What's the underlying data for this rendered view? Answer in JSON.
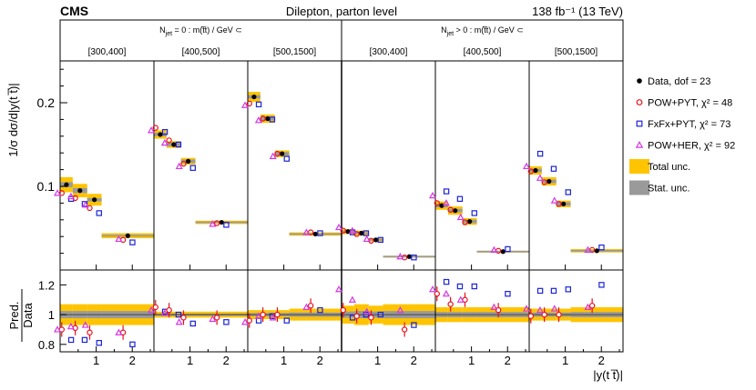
{
  "chart_data": {
    "type": "scatter",
    "experiment": "CMS",
    "title": "Dilepton, parton level",
    "lumi": "138 fb⁻¹ (13 TeV)",
    "ylabel": "1/σ dσ/d|y(t t̅)|",
    "ratio_ylabel_top": "Pred.",
    "ratio_ylabel_bottom": "Data",
    "xlabel": "|y(t t̅)|",
    "ylim": [
      0.0,
      0.25
    ],
    "ratio_ylim": [
      0.75,
      1.3
    ],
    "y_ticks": [
      {
        "v": 0.1,
        "label": "0.1"
      },
      {
        "v": 0.2,
        "label": "0.2"
      }
    ],
    "ratio_ticks": [
      {
        "v": 0.8,
        "label": "0.8"
      },
      {
        "v": 1.0,
        "label": "1"
      },
      {
        "v": 1.2,
        "label": "1.2"
      }
    ],
    "x_ticks": [
      {
        "v": 1,
        "label": "1"
      },
      {
        "v": 2,
        "label": "2"
      }
    ],
    "xlim": [
      0,
      2.6
    ],
    "bin_edges": [
      0,
      0.35,
      0.75,
      1.15,
      2.6
    ],
    "groups": [
      {
        "label": "Nⱼₑₜ = 0 : m(t t̅) / GeV ⊂",
        "label_main": "N",
        "label_sub": "jet",
        "label_rest": " = 0 : m(t̅t) / GeV ⊂"
      },
      {
        "label": "Nⱼₑₜ > 0 : m(t t̅) / GeV ⊂",
        "label_main": "N",
        "label_sub": "jet",
        "label_rest": " > 0 : m(t̅t) / GeV ⊂"
      }
    ],
    "panels": [
      {
        "range": "[300,400]",
        "data": [
          0.102,
          0.095,
          0.084,
          0.041
        ],
        "pow_pyt": [
          0.092,
          0.086,
          0.074,
          0.036
        ],
        "fxfx": [
          0.085,
          0.079,
          0.068,
          0.033
        ],
        "pow_her": [
          0.092,
          0.088,
          0.078,
          0.037
        ],
        "total_unc": [
          0.009,
          0.008,
          0.007,
          0.003
        ],
        "stat_unc": [
          0.003,
          0.003,
          0.002,
          0.001
        ],
        "r_pow_pyt": [
          0.9,
          0.91,
          0.88,
          0.88
        ],
        "r_fxfx": [
          0.83,
          0.83,
          0.81,
          0.8
        ],
        "r_pow_her": [
          0.9,
          0.92,
          0.93,
          0.88
        ],
        "r_total": [
          0.07,
          0.07,
          0.07,
          0.07
        ]
      },
      {
        "range": "[400,500]",
        "data": [
          0.162,
          0.15,
          0.13,
          0.057
        ],
        "pow_pyt": [
          0.17,
          0.155,
          0.127,
          0.056
        ],
        "fxfx": [
          0.165,
          0.15,
          0.122,
          0.054
        ],
        "pow_her": [
          0.167,
          0.152,
          0.124,
          0.055
        ],
        "total_unc": [
          0.005,
          0.004,
          0.004,
          0.002
        ],
        "stat_unc": [
          0.002,
          0.002,
          0.002,
          0.001
        ],
        "r_pow_pyt": [
          1.05,
          1.03,
          0.98,
          0.98
        ],
        "r_fxfx": [
          1.02,
          1.0,
          0.94,
          0.95
        ],
        "r_pow_her": [
          1.03,
          1.01,
          0.95,
          0.97
        ],
        "r_total": [
          0.02,
          0.02,
          0.02,
          0.02
        ]
      },
      {
        "range": "[500,1500]",
        "data": [
          0.207,
          0.181,
          0.139,
          0.043
        ],
        "pow_pyt": [
          0.199,
          0.181,
          0.139,
          0.045
        ],
        "fxfx": [
          0.198,
          0.18,
          0.133,
          0.044
        ],
        "pow_her": [
          0.197,
          0.179,
          0.136,
          0.045
        ],
        "total_unc": [
          0.006,
          0.005,
          0.004,
          0.002
        ],
        "stat_unc": [
          0.002,
          0.002,
          0.002,
          0.001
        ],
        "r_pow_pyt": [
          0.96,
          1.0,
          1.0,
          1.06
        ],
        "r_fxfx": [
          0.96,
          0.99,
          0.96,
          1.03
        ],
        "r_pow_her": [
          0.95,
          0.99,
          0.98,
          1.05
        ],
        "r_total": [
          0.03,
          0.03,
          0.03,
          0.04
        ]
      },
      {
        "range": "[300,400]",
        "data": [
          0.046,
          0.044,
          0.036,
          0.016
        ],
        "pow_pyt": [
          0.047,
          0.043,
          0.035,
          0.015
        ],
        "fxfx": [
          0.045,
          0.044,
          0.036,
          0.015
        ],
        "pow_her": [
          0.051,
          0.047,
          0.037,
          0.016
        ],
        "total_unc": [
          0.003,
          0.003,
          0.002,
          0.001
        ],
        "stat_unc": [
          0.001,
          0.001,
          0.001,
          0.001
        ],
        "r_pow_pyt": [
          1.03,
          0.99,
          0.98,
          0.9
        ],
        "r_fxfx": [
          0.98,
          1.0,
          1.0,
          0.93
        ],
        "r_pow_her": [
          1.17,
          1.1,
          1.02,
          1.03
        ],
        "r_total": [
          0.06,
          0.07,
          0.06,
          0.07
        ]
      },
      {
        "range": "[400,500]",
        "data": [
          0.077,
          0.071,
          0.058,
          0.022
        ],
        "pow_pyt": [
          0.08,
          0.072,
          0.057,
          0.023
        ],
        "fxfx": [
          0.094,
          0.085,
          0.068,
          0.025
        ],
        "pow_her": [
          0.089,
          0.08,
          0.063,
          0.024
        ],
        "total_unc": [
          0.005,
          0.005,
          0.004,
          0.001
        ],
        "stat_unc": [
          0.002,
          0.002,
          0.002,
          0.001
        ],
        "r_pow_pyt": [
          1.14,
          1.07,
          1.1,
          1.03
        ],
        "r_fxfx": [
          1.22,
          1.19,
          1.19,
          1.14
        ],
        "r_pow_her": [
          1.17,
          1.14,
          1.1,
          1.05
        ],
        "r_total": [
          0.05,
          0.05,
          0.05,
          0.05
        ]
      },
      {
        "range": "[500,1500]",
        "data": [
          0.119,
          0.106,
          0.079,
          0.023
        ],
        "pow_pyt": [
          0.118,
          0.105,
          0.079,
          0.024
        ],
        "fxfx": [
          0.139,
          0.121,
          0.093,
          0.027
        ],
        "pow_her": [
          0.124,
          0.11,
          0.083,
          0.024
        ],
        "total_unc": [
          0.005,
          0.005,
          0.004,
          0.002
        ],
        "stat_unc": [
          0.002,
          0.002,
          0.002,
          0.001
        ],
        "r_pow_pyt": [
          0.99,
          1.0,
          1.0,
          1.06
        ],
        "r_fxfx": [
          1.16,
          1.16,
          1.17,
          1.2
        ],
        "r_pow_her": [
          1.04,
          1.03,
          1.04,
          1.05
        ],
        "r_total": [
          0.04,
          0.04,
          0.04,
          0.05
        ]
      }
    ],
    "legend": [
      {
        "key": "data",
        "label": "Data, dof = 23"
      },
      {
        "key": "pow_pyt",
        "label": "POW+PYT, χ² = 48"
      },
      {
        "key": "fxfx",
        "label": "FxFx+PYT, χ² = 73"
      },
      {
        "key": "pow_her",
        "label": "POW+HER, χ² = 92"
      },
      {
        "key": "total",
        "label": "Total unc."
      },
      {
        "key": "stat",
        "label": "Stat. unc."
      }
    ],
    "colors": {
      "data": "#000000",
      "pow_pyt": "#e8101e",
      "fxfx": "#1b24d6",
      "pow_her": "#d536e6",
      "total": "#ffc400",
      "stat": "#9a9a9a"
    }
  }
}
